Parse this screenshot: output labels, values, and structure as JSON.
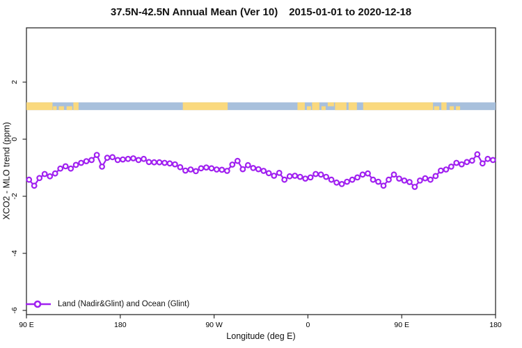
{
  "title": {
    "main": "37.5N-42.5N Annual Mean (Ver 10)",
    "dates": "2015-01-01 to 2020-12-18"
  },
  "chart_data": {
    "type": "line",
    "title": "37.5N-42.5N Annual Mean (Ver 10)  2015-01-01 to 2020-12-18",
    "xlabel": "Longitude (deg E)",
    "ylabel": "XCO2 - MLO trend (ppm)",
    "xlim": [
      90,
      540
    ],
    "ylim": [
      -6.2,
      3.9
    ],
    "grid": false,
    "x_ticks": [
      {
        "value": 90,
        "label": "90 E"
      },
      {
        "value": 180,
        "label": "180"
      },
      {
        "value": 270,
        "label": "90 W"
      },
      {
        "value": 360,
        "label": "0"
      },
      {
        "value": 450,
        "label": "90 E"
      },
      {
        "value": 540,
        "label": "180"
      }
    ],
    "y_ticks": [
      {
        "value": 2,
        "label": "2"
      },
      {
        "value": 0,
        "label": "0"
      },
      {
        "value": -2,
        "label": "-2"
      },
      {
        "value": -4,
        "label": "-4"
      },
      {
        "value": -6,
        "label": "-6"
      }
    ],
    "series": [
      {
        "name": "Land (Nadir&Glint) and Ocean (Glint)",
        "color": "#A020F0",
        "marker": "open-circle",
        "x": [
          92.5,
          97.5,
          102.5,
          107.5,
          112.5,
          117.5,
          122.5,
          127.5,
          132.5,
          137.5,
          142.5,
          147.5,
          152.5,
          157.5,
          162.5,
          167.5,
          172.5,
          177.5,
          182.5,
          187.5,
          192.5,
          197.5,
          202.5,
          207.5,
          212.5,
          217.5,
          222.5,
          227.5,
          232.5,
          237.5,
          242.5,
          247.5,
          252.5,
          257.5,
          262.5,
          267.5,
          272.5,
          277.5,
          282.5,
          287.5,
          292.5,
          297.5,
          302.5,
          307.5,
          312.5,
          317.5,
          322.5,
          327.5,
          332.5,
          337.5,
          342.5,
          347.5,
          352.5,
          357.5,
          362.5,
          367.5,
          372.5,
          377.5,
          382.5,
          387.5,
          392.5,
          397.5,
          402.5,
          407.5,
          412.5,
          417.5,
          422.5,
          427.5,
          432.5,
          437.5,
          442.5,
          447.5,
          452.5,
          457.5,
          462.5,
          467.5,
          472.5,
          477.5,
          482.5,
          487.5,
          492.5,
          497.5,
          502.5,
          507.5,
          512.5,
          517.5,
          522.5,
          527.5,
          532.5,
          537.5
        ],
        "y": [
          -1.42,
          -1.63,
          -1.36,
          -1.22,
          -1.3,
          -1.2,
          -1.03,
          -0.95,
          -1.03,
          -0.9,
          -0.83,
          -0.77,
          -0.73,
          -0.55,
          -0.96,
          -0.65,
          -0.63,
          -0.73,
          -0.71,
          -0.69,
          -0.67,
          -0.73,
          -0.69,
          -0.8,
          -0.81,
          -0.81,
          -0.83,
          -0.85,
          -0.88,
          -0.98,
          -1.1,
          -1.06,
          -1.12,
          -1.02,
          -0.99,
          -1.02,
          -1.06,
          -1.07,
          -1.11,
          -0.89,
          -0.76,
          -1.05,
          -0.91,
          -1.01,
          -1.05,
          -1.11,
          -1.19,
          -1.28,
          -1.18,
          -1.42,
          -1.3,
          -1.28,
          -1.32,
          -1.38,
          -1.34,
          -1.22,
          -1.24,
          -1.32,
          -1.42,
          -1.52,
          -1.57,
          -1.49,
          -1.42,
          -1.34,
          -1.24,
          -1.2,
          -1.42,
          -1.49,
          -1.63,
          -1.42,
          -1.24,
          -1.38,
          -1.45,
          -1.5,
          -1.67,
          -1.45,
          -1.37,
          -1.42,
          -1.29,
          -1.1,
          -1.06,
          -0.96,
          -0.83,
          -0.88,
          -0.8,
          -0.75,
          -0.53,
          -0.85,
          -0.69,
          -0.73
        ]
      }
    ],
    "map_band": {
      "description": "land/ocean strip along latitude band",
      "y_range": [
        1.02,
        1.29
      ],
      "ocean_color": "#A8C0DC",
      "land_color": "#FAD97E",
      "land_segments": [
        {
          "from": 90,
          "to": 115,
          "part": "full"
        },
        {
          "from": 115.5,
          "to": 119,
          "part": "bottom"
        },
        {
          "from": 121,
          "to": 126,
          "part": "bottom"
        },
        {
          "from": 128.5,
          "to": 134,
          "part": "bottom"
        },
        {
          "from": 135,
          "to": 140,
          "part": "full"
        },
        {
          "from": 240,
          "to": 283,
          "part": "full"
        },
        {
          "from": 350,
          "to": 357,
          "part": "full"
        },
        {
          "from": 359,
          "to": 363,
          "part": "bottom"
        },
        {
          "from": 364,
          "to": 371,
          "part": "full"
        },
        {
          "from": 373,
          "to": 377,
          "part": "bottom"
        },
        {
          "from": 379,
          "to": 385,
          "part": "top"
        },
        {
          "from": 386,
          "to": 397,
          "part": "full"
        },
        {
          "from": 399,
          "to": 407,
          "part": "full"
        },
        {
          "from": 413,
          "to": 480,
          "part": "full"
        },
        {
          "from": 481,
          "to": 486,
          "part": "bottom"
        },
        {
          "from": 488,
          "to": 493,
          "part": "full"
        },
        {
          "from": 496,
          "to": 500,
          "part": "bottom"
        },
        {
          "from": 502,
          "to": 506,
          "part": "bottom"
        }
      ]
    },
    "legend": {
      "position": "bottom-left",
      "entries": [
        {
          "label": "Land (Nadir&Glint) and Ocean (Glint)",
          "color": "#A020F0",
          "marker": "open-circle"
        }
      ]
    }
  }
}
